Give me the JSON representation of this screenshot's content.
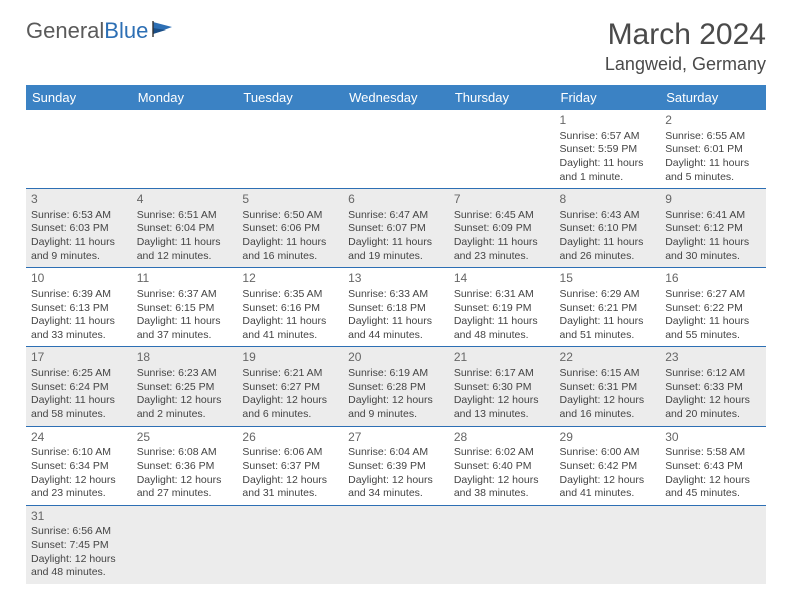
{
  "logo": {
    "text1": "General",
    "text2": "Blue"
  },
  "title": "March 2024",
  "location": "Langweid, Germany",
  "headers": [
    "Sunday",
    "Monday",
    "Tuesday",
    "Wednesday",
    "Thursday",
    "Friday",
    "Saturday"
  ],
  "colors": {
    "header_bg": "#3b82c4",
    "header_fg": "#ffffff",
    "border": "#2d6fb4",
    "shade": "#ececec",
    "text": "#444444",
    "logo_gray": "#5a5a5a",
    "logo_blue": "#2d6fb4"
  },
  "weeks": [
    {
      "shaded": false,
      "days": [
        null,
        null,
        null,
        null,
        null,
        {
          "n": "1",
          "sr": "Sunrise: 6:57 AM",
          "ss": "Sunset: 5:59 PM",
          "dl": "Daylight: 11 hours and 1 minute."
        },
        {
          "n": "2",
          "sr": "Sunrise: 6:55 AM",
          "ss": "Sunset: 6:01 PM",
          "dl": "Daylight: 11 hours and 5 minutes."
        }
      ]
    },
    {
      "shaded": true,
      "days": [
        {
          "n": "3",
          "sr": "Sunrise: 6:53 AM",
          "ss": "Sunset: 6:03 PM",
          "dl": "Daylight: 11 hours and 9 minutes."
        },
        {
          "n": "4",
          "sr": "Sunrise: 6:51 AM",
          "ss": "Sunset: 6:04 PM",
          "dl": "Daylight: 11 hours and 12 minutes."
        },
        {
          "n": "5",
          "sr": "Sunrise: 6:50 AM",
          "ss": "Sunset: 6:06 PM",
          "dl": "Daylight: 11 hours and 16 minutes."
        },
        {
          "n": "6",
          "sr": "Sunrise: 6:47 AM",
          "ss": "Sunset: 6:07 PM",
          "dl": "Daylight: 11 hours and 19 minutes."
        },
        {
          "n": "7",
          "sr": "Sunrise: 6:45 AM",
          "ss": "Sunset: 6:09 PM",
          "dl": "Daylight: 11 hours and 23 minutes."
        },
        {
          "n": "8",
          "sr": "Sunrise: 6:43 AM",
          "ss": "Sunset: 6:10 PM",
          "dl": "Daylight: 11 hours and 26 minutes."
        },
        {
          "n": "9",
          "sr": "Sunrise: 6:41 AM",
          "ss": "Sunset: 6:12 PM",
          "dl": "Daylight: 11 hours and 30 minutes."
        }
      ]
    },
    {
      "shaded": false,
      "days": [
        {
          "n": "10",
          "sr": "Sunrise: 6:39 AM",
          "ss": "Sunset: 6:13 PM",
          "dl": "Daylight: 11 hours and 33 minutes."
        },
        {
          "n": "11",
          "sr": "Sunrise: 6:37 AM",
          "ss": "Sunset: 6:15 PM",
          "dl": "Daylight: 11 hours and 37 minutes."
        },
        {
          "n": "12",
          "sr": "Sunrise: 6:35 AM",
          "ss": "Sunset: 6:16 PM",
          "dl": "Daylight: 11 hours and 41 minutes."
        },
        {
          "n": "13",
          "sr": "Sunrise: 6:33 AM",
          "ss": "Sunset: 6:18 PM",
          "dl": "Daylight: 11 hours and 44 minutes."
        },
        {
          "n": "14",
          "sr": "Sunrise: 6:31 AM",
          "ss": "Sunset: 6:19 PM",
          "dl": "Daylight: 11 hours and 48 minutes."
        },
        {
          "n": "15",
          "sr": "Sunrise: 6:29 AM",
          "ss": "Sunset: 6:21 PM",
          "dl": "Daylight: 11 hours and 51 minutes."
        },
        {
          "n": "16",
          "sr": "Sunrise: 6:27 AM",
          "ss": "Sunset: 6:22 PM",
          "dl": "Daylight: 11 hours and 55 minutes."
        }
      ]
    },
    {
      "shaded": true,
      "days": [
        {
          "n": "17",
          "sr": "Sunrise: 6:25 AM",
          "ss": "Sunset: 6:24 PM",
          "dl": "Daylight: 11 hours and 58 minutes."
        },
        {
          "n": "18",
          "sr": "Sunrise: 6:23 AM",
          "ss": "Sunset: 6:25 PM",
          "dl": "Daylight: 12 hours and 2 minutes."
        },
        {
          "n": "19",
          "sr": "Sunrise: 6:21 AM",
          "ss": "Sunset: 6:27 PM",
          "dl": "Daylight: 12 hours and 6 minutes."
        },
        {
          "n": "20",
          "sr": "Sunrise: 6:19 AM",
          "ss": "Sunset: 6:28 PM",
          "dl": "Daylight: 12 hours and 9 minutes."
        },
        {
          "n": "21",
          "sr": "Sunrise: 6:17 AM",
          "ss": "Sunset: 6:30 PM",
          "dl": "Daylight: 12 hours and 13 minutes."
        },
        {
          "n": "22",
          "sr": "Sunrise: 6:15 AM",
          "ss": "Sunset: 6:31 PM",
          "dl": "Daylight: 12 hours and 16 minutes."
        },
        {
          "n": "23",
          "sr": "Sunrise: 6:12 AM",
          "ss": "Sunset: 6:33 PM",
          "dl": "Daylight: 12 hours and 20 minutes."
        }
      ]
    },
    {
      "shaded": false,
      "days": [
        {
          "n": "24",
          "sr": "Sunrise: 6:10 AM",
          "ss": "Sunset: 6:34 PM",
          "dl": "Daylight: 12 hours and 23 minutes."
        },
        {
          "n": "25",
          "sr": "Sunrise: 6:08 AM",
          "ss": "Sunset: 6:36 PM",
          "dl": "Daylight: 12 hours and 27 minutes."
        },
        {
          "n": "26",
          "sr": "Sunrise: 6:06 AM",
          "ss": "Sunset: 6:37 PM",
          "dl": "Daylight: 12 hours and 31 minutes."
        },
        {
          "n": "27",
          "sr": "Sunrise: 6:04 AM",
          "ss": "Sunset: 6:39 PM",
          "dl": "Daylight: 12 hours and 34 minutes."
        },
        {
          "n": "28",
          "sr": "Sunrise: 6:02 AM",
          "ss": "Sunset: 6:40 PM",
          "dl": "Daylight: 12 hours and 38 minutes."
        },
        {
          "n": "29",
          "sr": "Sunrise: 6:00 AM",
          "ss": "Sunset: 6:42 PM",
          "dl": "Daylight: 12 hours and 41 minutes."
        },
        {
          "n": "30",
          "sr": "Sunrise: 5:58 AM",
          "ss": "Sunset: 6:43 PM",
          "dl": "Daylight: 12 hours and 45 minutes."
        }
      ]
    },
    {
      "shaded": true,
      "last": true,
      "days": [
        {
          "n": "31",
          "sr": "Sunrise: 6:56 AM",
          "ss": "Sunset: 7:45 PM",
          "dl": "Daylight: 12 hours and 48 minutes."
        },
        null,
        null,
        null,
        null,
        null,
        null
      ]
    }
  ]
}
